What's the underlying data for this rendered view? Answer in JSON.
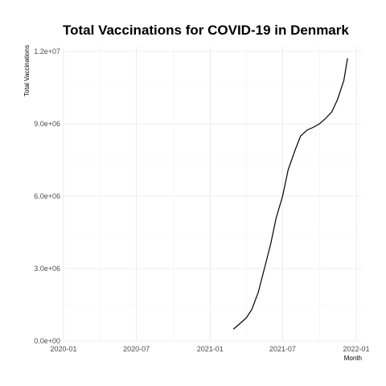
{
  "chart_data": {
    "type": "line",
    "title": "Total Vaccinations for COVID-19 in Denmark",
    "xlabel": "Month",
    "ylabel": "Total Vaccinations",
    "x_ticks": [
      "2020-01",
      "2020-07",
      "2021-01",
      "2021-07",
      "2022-01"
    ],
    "y_ticks": [
      "0.0e+00",
      "3.0e+06",
      "6.0e+06",
      "9.0e+06",
      "1.2e+07"
    ],
    "xlim": [
      "2020-01-01",
      "2022-01-15"
    ],
    "ylim": [
      0,
      12000000
    ],
    "grid": true,
    "legend": "none",
    "series": [
      {
        "values": [
          {
            "x": "2021-03-01",
            "y": 500000
          },
          {
            "x": "2021-03-15",
            "y": 700000
          },
          {
            "x": "2021-04-01",
            "y": 950000
          },
          {
            "x": "2021-04-15",
            "y": 1300000
          },
          {
            "x": "2021-05-01",
            "y": 2000000
          },
          {
            "x": "2021-05-15",
            "y": 2900000
          },
          {
            "x": "2021-06-01",
            "y": 4000000
          },
          {
            "x": "2021-06-15",
            "y": 5100000
          },
          {
            "x": "2021-07-01",
            "y": 6000000
          },
          {
            "x": "2021-07-15",
            "y": 7100000
          },
          {
            "x": "2021-08-01",
            "y": 7900000
          },
          {
            "x": "2021-08-15",
            "y": 8500000
          },
          {
            "x": "2021-09-01",
            "y": 8750000
          },
          {
            "x": "2021-09-15",
            "y": 8850000
          },
          {
            "x": "2021-10-01",
            "y": 9000000
          },
          {
            "x": "2021-10-15",
            "y": 9200000
          },
          {
            "x": "2021-11-01",
            "y": 9500000
          },
          {
            "x": "2021-11-15",
            "y": 10000000
          },
          {
            "x": "2021-12-01",
            "y": 10800000
          },
          {
            "x": "2021-12-10",
            "y": 11700000
          }
        ]
      }
    ]
  }
}
